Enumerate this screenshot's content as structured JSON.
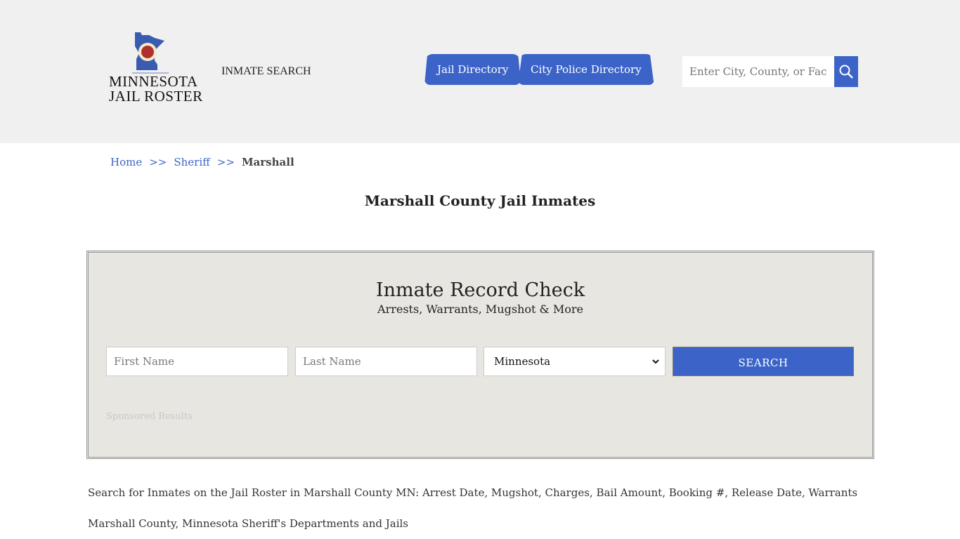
{
  "header": {
    "logo_text": [
      "MINNESOTA",
      "JAIL ROSTER"
    ],
    "inmate_search": "INMATE SEARCH",
    "tabs": [
      {
        "label": "Jail Directory"
      },
      {
        "label": "City Police Directory"
      }
    ],
    "search": {
      "placeholder": "Enter City, County, or Facility",
      "icon": "search-icon"
    }
  },
  "breadcrumb": {
    "items": [
      "Home",
      "Sheriff"
    ],
    "separator": ">>",
    "current": "Marshall"
  },
  "page_title": "Marshall County Jail Inmates",
  "record_check": {
    "title": "Inmate Record Check",
    "subtitle": "Arrests, Warrants, Mugshot & More",
    "first_placeholder": "First Name",
    "last_placeholder": "Last Name",
    "state": "Minnesota",
    "search_label": "SEARCH",
    "sponsored": "Sponsored Results"
  },
  "paragraphs": [
    "Search for Inmates on the Jail Roster in Marshall County MN: Arrest Date, Mugshot, Charges, Bail Amount, Booking #, Release Date, Warrants",
    "Marshall County, Minnesota Sheriff's Departments and Jails"
  ],
  "colors": {
    "accent": "#3c64c8",
    "header_bg": "#f0f0f0",
    "box_bg": "#e8e6e1"
  }
}
